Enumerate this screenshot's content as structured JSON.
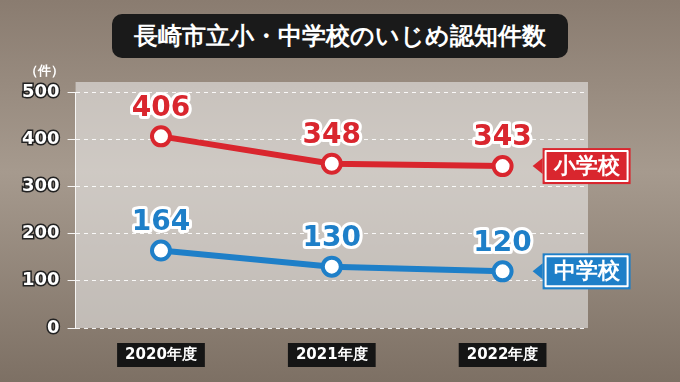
{
  "chart_data": {
    "type": "line",
    "title": "長崎市立小・中学校のいじめ認知件数",
    "y_label": "（件）",
    "categories": [
      "2020年度",
      "2021年度",
      "2022年度"
    ],
    "series": [
      {
        "name": "小学校",
        "color": "#d9262e",
        "values": [
          406,
          348,
          343
        ]
      },
      {
        "name": "中学校",
        "color": "#1e7fc8",
        "values": [
          164,
          130,
          120
        ]
      }
    ],
    "ylim": [
      0,
      500
    ],
    "yticks": [
      0,
      100,
      200,
      300,
      400,
      500
    ],
    "grid": true,
    "data_labels": true,
    "marker": "circle"
  }
}
